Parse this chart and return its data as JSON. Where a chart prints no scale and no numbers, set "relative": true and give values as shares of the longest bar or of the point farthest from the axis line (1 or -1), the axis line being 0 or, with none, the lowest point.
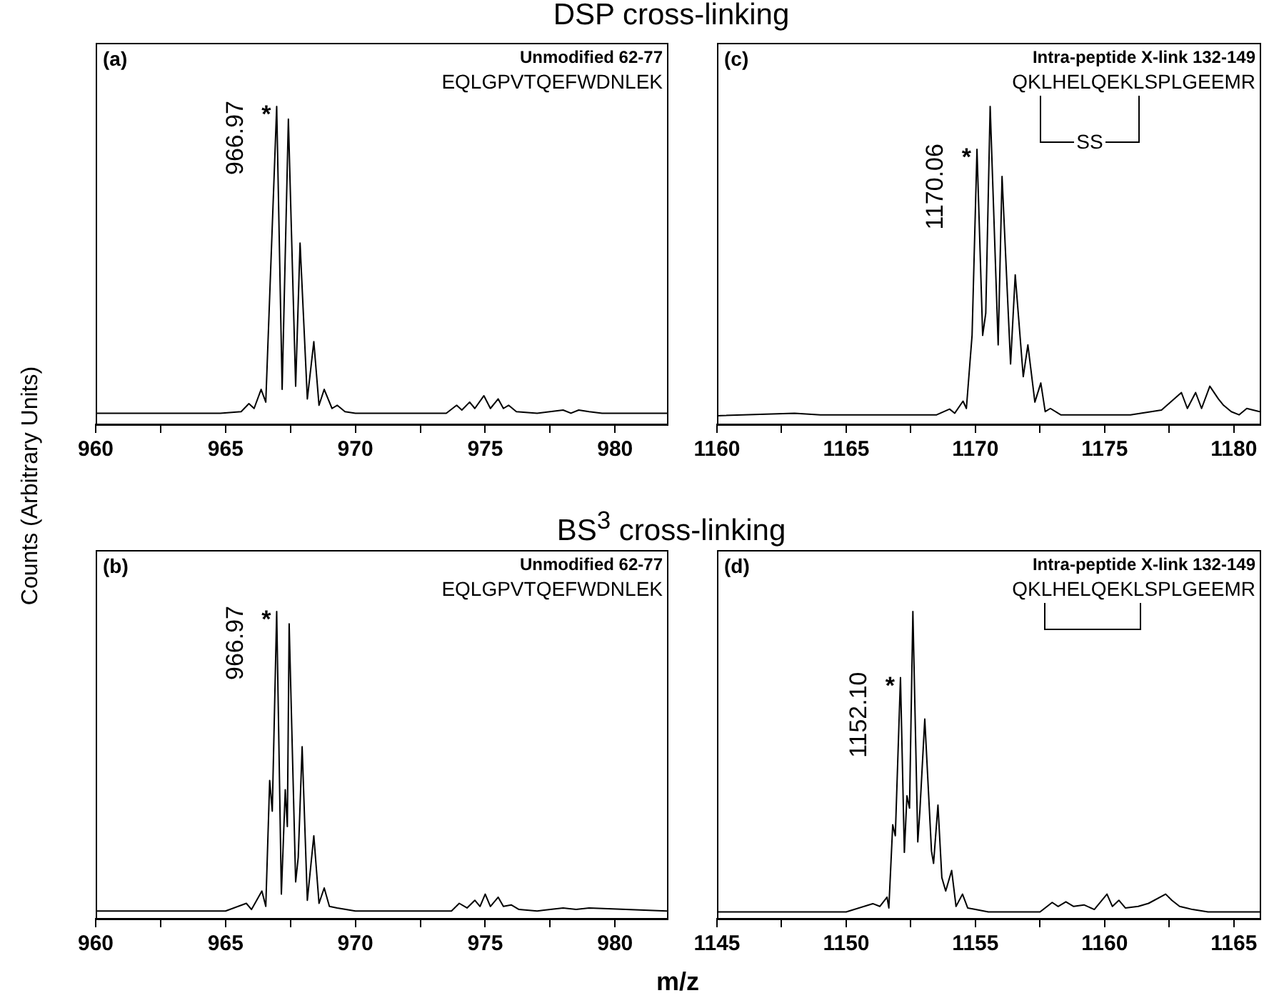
{
  "chart_data": [
    {
      "type": "line",
      "title": "DSP cross-linking",
      "ylabel": "Counts (Arbitrary Units)",
      "relative": true,
      "tick_labels": "x",
      "xlim": [
        960,
        982
      ],
      "xticks": [
        960,
        {
          "value": 962.5,
          "label": null
        },
        965,
        {
          "value": 967.5,
          "label": null
        },
        970,
        {
          "value": 972.5,
          "label": null
        },
        975,
        {
          "value": 977.5,
          "label": null
        },
        980
      ],
      "x": [
        960,
        964.8,
        965.6,
        965.9,
        966.1,
        966.37,
        966.55,
        966.97,
        967.18,
        967.42,
        967.7,
        967.87,
        968.15,
        968.4,
        968.6,
        968.8,
        969.1,
        969.3,
        969.6,
        970,
        973.5,
        973.9,
        974.1,
        974.4,
        974.6,
        974.95,
        975.2,
        975.5,
        975.7,
        975.9,
        976.2,
        977,
        978,
        978.3,
        978.6,
        979,
        979.5,
        982
      ],
      "series": [
        {
          "color": "#000000",
          "values": [
            0.035,
            0.035,
            0.04,
            0.065,
            0.05,
            0.11,
            0.07,
            1,
            0.11,
            0.96,
            0.12,
            0.57,
            0.08,
            0.26,
            0.06,
            0.11,
            0.05,
            0.06,
            0.04,
            0.035,
            0.035,
            0.06,
            0.045,
            0.07,
            0.05,
            0.09,
            0.05,
            0.08,
            0.05,
            0.06,
            0.04,
            0.035,
            0.045,
            0.035,
            0.045,
            0.04,
            0.035,
            0.035
          ]
        }
      ],
      "annotations": [
        "(a)",
        "Unmodified 62-77",
        "EQLGPVTQEFWDNLEK",
        {
          "text": "966.97",
          "x": 966.97,
          "y": 1
        },
        {
          "text": "*",
          "x": 966.97,
          "y": 1
        }
      ]
    },
    {
      "type": "line",
      "relative": true,
      "tick_labels": "x",
      "xlim": [
        1160,
        1181
      ],
      "xticks": [
        1160,
        {
          "value": 1162.5,
          "label": null
        },
        1165,
        {
          "value": 1167.5,
          "label": null
        },
        1170,
        {
          "value": 1172.5,
          "label": null
        },
        1175,
        {
          "value": 1177.5,
          "label": null
        },
        1180
      ],
      "x": [
        1160,
        1163,
        1164,
        1168.5,
        1169,
        1169.2,
        1169.52,
        1169.65,
        1169.87,
        1170.06,
        1170.28,
        1170.4,
        1170.57,
        1170.88,
        1171.03,
        1171.36,
        1171.54,
        1171.85,
        1172.03,
        1172.3,
        1172.53,
        1172.7,
        1172.9,
        1173.3,
        1176,
        1177.2,
        1177.97,
        1178.2,
        1178.52,
        1178.75,
        1179.07,
        1179.4,
        1179.6,
        1179.9,
        1180.2,
        1180.5,
        1181
      ],
      "series": [
        {
          "color": "#000000",
          "values": [
            0.027,
            0.035,
            0.03,
            0.03,
            0.048,
            0.035,
            0.073,
            0.05,
            0.28,
            0.865,
            0.28,
            0.35,
            1,
            0.25,
            0.78,
            0.19,
            0.47,
            0.15,
            0.25,
            0.07,
            0.13,
            0.04,
            0.05,
            0.03,
            0.03,
            0.045,
            0.1,
            0.05,
            0.1,
            0.05,
            0.12,
            0.08,
            0.06,
            0.04,
            0.03,
            0.05,
            0.04
          ]
        }
      ],
      "annotations": [
        "(c)",
        "Intra-peptide X-link 132-149",
        "QKLHELQEKLSPLGEEMR",
        "SS",
        {
          "text": "1170.06",
          "x": 1170.06,
          "y": 0.865
        },
        {
          "text": "*",
          "x": 1170.06,
          "y": 0.865
        }
      ]
    },
    {
      "type": "line",
      "title": "BS$^{3}$ cross-linking",
      "xlabel": "m/z",
      "relative": true,
      "tick_labels": "x",
      "xlim": [
        960,
        982
      ],
      "xticks": [
        960,
        {
          "value": 962.5,
          "label": null
        },
        965,
        {
          "value": 967.5,
          "label": null
        },
        970,
        {
          "value": 972.5,
          "label": null
        },
        975,
        {
          "value": 977.5,
          "label": null
        },
        980
      ],
      "x": [
        960,
        965,
        965.8,
        966,
        966.4,
        966.55,
        966.7,
        966.8,
        966.97,
        967.15,
        967.3,
        967.38,
        967.45,
        967.7,
        967.8,
        967.95,
        968.15,
        968.4,
        968.6,
        968.8,
        969,
        969.3,
        970,
        973.7,
        974,
        974.3,
        974.6,
        974.8,
        975,
        975.2,
        975.5,
        975.7,
        976,
        976.3,
        977,
        978,
        978.5,
        979,
        982
      ],
      "series": [
        {
          "color": "#000000",
          "values": [
            0.025,
            0.025,
            0.05,
            0.03,
            0.09,
            0.04,
            0.45,
            0.35,
            1,
            0.08,
            0.42,
            0.3,
            0.96,
            0.12,
            0.2,
            0.56,
            0.06,
            0.27,
            0.05,
            0.1,
            0.04,
            0.035,
            0.025,
            0.025,
            0.05,
            0.035,
            0.06,
            0.04,
            0.08,
            0.04,
            0.07,
            0.04,
            0.045,
            0.03,
            0.025,
            0.035,
            0.03,
            0.035,
            0.025
          ]
        }
      ],
      "annotations": [
        "(b)",
        "Unmodified 62-77",
        "EQLGPVTQEFWDNLEK",
        {
          "text": "966.97",
          "x": 966.97,
          "y": 1
        },
        {
          "text": "*",
          "x": 966.97,
          "y": 1
        }
      ]
    },
    {
      "type": "line",
      "relative": true,
      "tick_labels": "x",
      "xlim": [
        1145,
        1166
      ],
      "xticks": [
        1145,
        {
          "value": 1147.5,
          "label": null
        },
        1150,
        {
          "value": 1152.5,
          "label": null
        },
        1155,
        {
          "value": 1157.5,
          "label": null
        },
        1160,
        {
          "value": 1162.5,
          "label": null
        },
        1165
      ],
      "x": [
        1145,
        1150,
        1151.03,
        1151.3,
        1151.58,
        1151.65,
        1151.8,
        1151.9,
        1152.1,
        1152.25,
        1152.35,
        1152.45,
        1152.58,
        1152.77,
        1152.85,
        1153.04,
        1153.3,
        1153.38,
        1153.55,
        1153.7,
        1153.85,
        1154.08,
        1154.25,
        1154.5,
        1154.7,
        1155,
        1155.5,
        1157.5,
        1157.97,
        1158.2,
        1158.5,
        1158.8,
        1159.2,
        1159.6,
        1160.09,
        1160.3,
        1160.55,
        1160.8,
        1161.3,
        1161.7,
        1162.36,
        1162.6,
        1162.9,
        1163.4,
        1164,
        1166
      ],
      "series": [
        {
          "color": "#000000",
          "values": [
            0.022,
            0.022,
            0.049,
            0.04,
            0.07,
            0.035,
            0.306,
            0.27,
            0.785,
            0.216,
            0.4,
            0.36,
            1,
            0.25,
            0.35,
            0.65,
            0.22,
            0.18,
            0.37,
            0.134,
            0.09,
            0.157,
            0.04,
            0.08,
            0.035,
            0.03,
            0.022,
            0.022,
            0.053,
            0.04,
            0.055,
            0.04,
            0.045,
            0.03,
            0.08,
            0.04,
            0.06,
            0.035,
            0.04,
            0.05,
            0.08,
            0.06,
            0.04,
            0.03,
            0.022,
            0.022
          ]
        }
      ],
      "annotations": [
        "(d)",
        "Intra-peptide X-link 132-149",
        "QKLHELQEKLSPLGEEMR",
        {
          "text": "1152.10",
          "x": 1152.1,
          "y": 0.785
        },
        {
          "text": "*",
          "x": 1152.1,
          "y": 0.785
        }
      ]
    }
  ]
}
